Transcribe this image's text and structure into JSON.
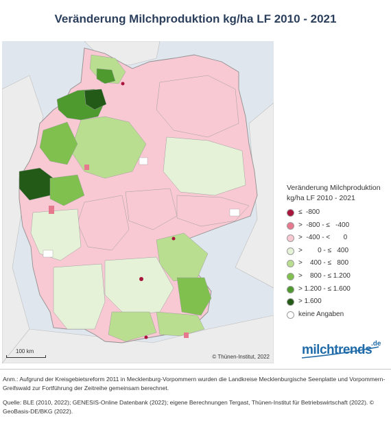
{
  "title": "Veränderung Milchproduktion kg/ha LF 2010 - 2021",
  "map": {
    "copyright": "© Thünen-Institut, 2022",
    "scalebar_label": "100 km",
    "colors": {
      "water": "#dfe6ee",
      "neighbour": "#ececec",
      "border": "#9e9e9e"
    }
  },
  "legend": {
    "title_line1": "Veränderung Milchproduktion",
    "title_line2": "kg/ha LF 2010 - 2021",
    "items": [
      {
        "label": "≤  -800",
        "color": "#a8143c"
      },
      {
        "label": ">  -800 - ≤   -400",
        "color": "#e7798f"
      },
      {
        "label": ">  -400 - <       0",
        "color": "#f8c9d3"
      },
      {
        "label": ">        0 - ≤   400",
        "color": "#e6f2d8"
      },
      {
        "label": ">    400 - ≤   800",
        "color": "#b9de90"
      },
      {
        "label": ">    800 - ≤ 1.200",
        "color": "#7fc04f"
      },
      {
        "label": "> 1.200 - ≤ 1.600",
        "color": "#4e9a2e"
      },
      {
        "label": "> 1.600",
        "color": "#245a17"
      },
      {
        "label": "keine Angaben",
        "color": "#ffffff"
      }
    ]
  },
  "logo": {
    "word": "milchtrends",
    "tld": ".de"
  },
  "note": "Anm.: Aufgrund der Kreisgebietsreform 2011 in Mecklenburg-Vorpommern wurden die Landkreise Mecklenburgische Seenplatte und Vorpommern-Greifswald zur Fortführung der Zeitreihe gemeinsam berechnet.",
  "source": "Quelle: BLE (2010, 2022); GENESIS-Online Datenbank (2022); eigene Berechnungen Tergast, Thünen-Institut für Betriebswirtschaft (2022). © GeoBasis-DE/BKG (2022)."
}
